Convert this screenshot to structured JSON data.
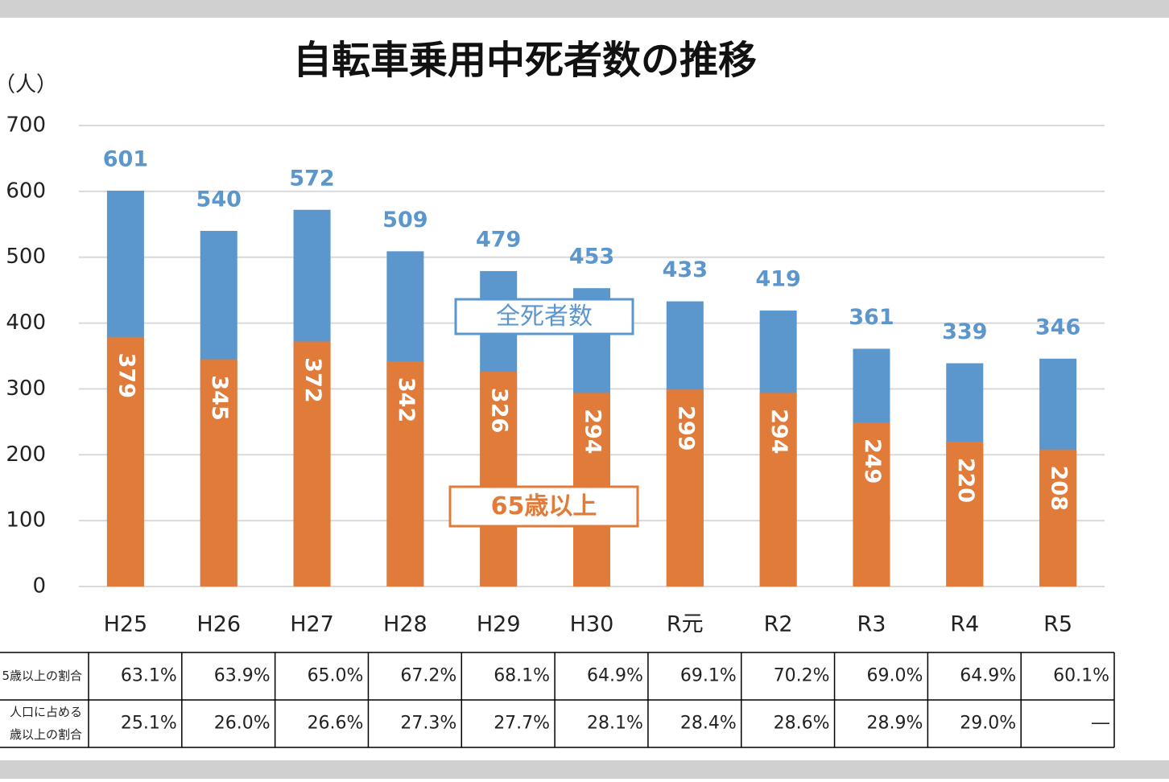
{
  "chart_data": {
    "type": "bar",
    "title": "自転車乗用中死者数の推移",
    "y_label": "（人）",
    "categories": [
      "H25",
      "H26",
      "H27",
      "H28",
      "H29",
      "H30",
      "R元",
      "R2",
      "R3",
      "R4",
      "R5"
    ],
    "series": [
      {
        "name": "全死者数",
        "color": "#5b96cc",
        "values": [
          601,
          540,
          572,
          509,
          479,
          453,
          433,
          419,
          361,
          339,
          346
        ]
      },
      {
        "name": "65歳以上",
        "color": "#e07b39",
        "values": [
          379,
          345,
          372,
          342,
          326,
          294,
          299,
          294,
          249,
          220,
          208
        ]
      }
    ],
    "ylim": [
      0,
      700
    ],
    "yticks": [
      0,
      100,
      200,
      300,
      400,
      500,
      600,
      700
    ],
    "grid": true
  },
  "table": {
    "rows": [
      {
        "label_lines": [
          "5歳以上の割合"
        ],
        "cells": [
          "63.1%",
          "63.9%",
          "65.0%",
          "67.2%",
          "68.1%",
          "64.9%",
          "69.1%",
          "70.2%",
          "69.0%",
          "64.9%",
          "60.1%"
        ]
      },
      {
        "label_lines": [
          "人口に占める",
          "歳以上の割合"
        ],
        "cells": [
          "25.1%",
          "26.0%",
          "26.6%",
          "27.3%",
          "27.7%",
          "28.1%",
          "28.4%",
          "28.6%",
          "28.9%",
          "29.0%",
          "―"
        ]
      }
    ]
  }
}
